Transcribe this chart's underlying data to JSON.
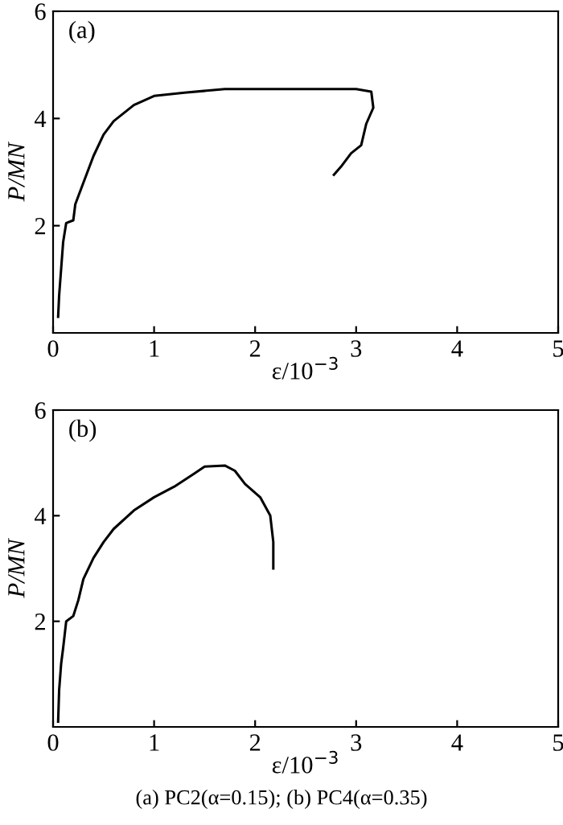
{
  "chart_data": [
    {
      "type": "line",
      "xlabel": "ε/10$^{−3}$",
      "ylabel": "P/MN",
      "annotations": [
        "(a)"
      ],
      "xlim": [
        0,
        5
      ],
      "ylim": [
        0,
        6
      ],
      "xticks": [
        0,
        1,
        2,
        3,
        4,
        5
      ],
      "yticks": [
        2,
        4,
        6
      ],
      "grid": false,
      "legend": false,
      "series": [
        {
          "color": "#000000",
          "x": [
            0.05,
            0.06,
            0.08,
            0.1,
            0.13,
            0.2,
            0.22,
            0.3,
            0.4,
            0.5,
            0.6,
            0.8,
            1.0,
            1.3,
            1.7,
            3.0,
            3.15,
            3.17,
            3.1,
            3.05,
            2.95,
            2.85,
            2.78
          ],
          "values": [
            0.3,
            0.7,
            1.2,
            1.7,
            2.05,
            2.1,
            2.4,
            2.8,
            3.3,
            3.7,
            3.95,
            4.25,
            4.42,
            4.48,
            4.55,
            4.55,
            4.5,
            4.2,
            3.9,
            3.5,
            3.35,
            3.1,
            2.95
          ]
        }
      ]
    },
    {
      "type": "line",
      "xlabel": "ε/10$^{−3}$",
      "ylabel": "P/MN",
      "annotations": [
        "(b)",
        "(a) PC2(α=0.15); (b) PC4(α=0.35)"
      ],
      "xlim": [
        0,
        5
      ],
      "ylim": [
        0,
        6
      ],
      "xticks": [
        0,
        1,
        2,
        3,
        4,
        5
      ],
      "yticks": [
        2,
        4,
        6
      ],
      "grid": false,
      "legend": false,
      "series": [
        {
          "color": "#000000",
          "x": [
            0.05,
            0.06,
            0.08,
            0.1,
            0.13,
            0.2,
            0.25,
            0.3,
            0.4,
            0.5,
            0.6,
            0.8,
            1.0,
            1.2,
            1.4,
            1.5,
            1.7,
            1.8,
            1.9,
            2.05,
            2.15,
            2.18,
            2.18
          ],
          "values": [
            0.1,
            0.7,
            1.2,
            1.5,
            2.0,
            2.1,
            2.4,
            2.8,
            3.2,
            3.5,
            3.75,
            4.1,
            4.35,
            4.55,
            4.8,
            4.93,
            4.95,
            4.85,
            4.6,
            4.35,
            4.0,
            3.5,
            3.0
          ]
        }
      ]
    }
  ]
}
